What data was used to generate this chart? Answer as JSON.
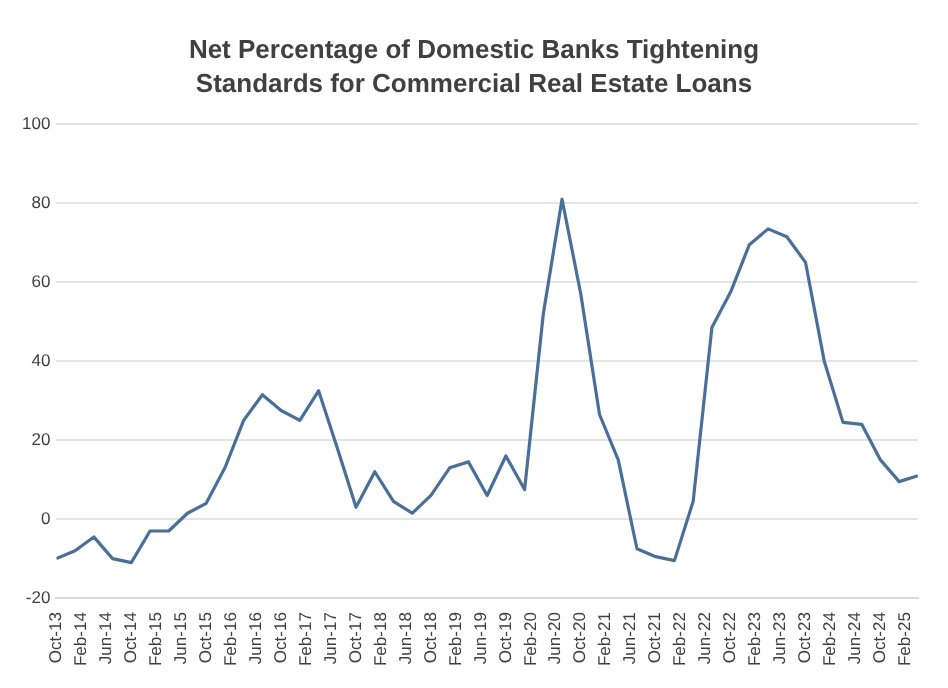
{
  "chart_data": {
    "type": "line",
    "title": "Net Percentage of Domestic Banks Tightening Standards for Commercial Real Estate Loans",
    "x": [
      "2013-10",
      "2014-01",
      "2014-04",
      "2014-07",
      "2014-10",
      "2015-01",
      "2015-04",
      "2015-07",
      "2015-10",
      "2016-01",
      "2016-04",
      "2016-07",
      "2016-10",
      "2017-01",
      "2017-04",
      "2017-07",
      "2017-10",
      "2018-01",
      "2018-04",
      "2018-07",
      "2018-10",
      "2019-01",
      "2019-04",
      "2019-07",
      "2019-10",
      "2020-01",
      "2020-04",
      "2020-07",
      "2020-10",
      "2021-01",
      "2021-04",
      "2021-07",
      "2021-10",
      "2022-01",
      "2022-04",
      "2022-07",
      "2022-10",
      "2023-01",
      "2023-04",
      "2023-07",
      "2023-10",
      "2024-01",
      "2024-04",
      "2024-07",
      "2024-10",
      "2025-01",
      "2025-04"
    ],
    "series": [
      {
        "color": "#4a6f98",
        "values": [
          -10,
          -8,
          -4.5,
          -10,
          -11,
          -3,
          -3,
          1.5,
          4,
          13,
          25,
          31.5,
          27.5,
          25,
          32.5,
          18,
          3,
          12,
          4.5,
          1.5,
          6,
          13,
          14.5,
          6,
          16,
          7.5,
          52,
          81,
          57,
          26.5,
          15,
          -7.5,
          -9.5,
          -10.5,
          4.5,
          48.5,
          57.5,
          69.5,
          73.5,
          71.5,
          65,
          40,
          24.5,
          24,
          15,
          9.5,
          11
        ]
      }
    ],
    "xlim": [
      "2013-10",
      "2025-04"
    ],
    "xticks": [
      {
        "value": "2013-10",
        "label": "Oct-13"
      },
      {
        "value": "2014-02",
        "label": "Feb-14"
      },
      {
        "value": "2014-06",
        "label": "Jun-14"
      },
      {
        "value": "2014-10",
        "label": "Oct-14"
      },
      {
        "value": "2015-02",
        "label": "Feb-15"
      },
      {
        "value": "2015-06",
        "label": "Jun-15"
      },
      {
        "value": "2015-10",
        "label": "Oct-15"
      },
      {
        "value": "2016-02",
        "label": "Feb-16"
      },
      {
        "value": "2016-06",
        "label": "Jun-16"
      },
      {
        "value": "2016-10",
        "label": "Oct-16"
      },
      {
        "value": "2017-02",
        "label": "Feb-17"
      },
      {
        "value": "2017-06",
        "label": "Jun-17"
      },
      {
        "value": "2017-10",
        "label": "Oct-17"
      },
      {
        "value": "2018-02",
        "label": "Feb-18"
      },
      {
        "value": "2018-06",
        "label": "Jun-18"
      },
      {
        "value": "2018-10",
        "label": "Oct-18"
      },
      {
        "value": "2019-02",
        "label": "Feb-19"
      },
      {
        "value": "2019-06",
        "label": "Jun-19"
      },
      {
        "value": "2019-10",
        "label": "Oct-19"
      },
      {
        "value": "2020-02",
        "label": "Feb-20"
      },
      {
        "value": "2020-06",
        "label": "Jun-20"
      },
      {
        "value": "2020-10",
        "label": "Oct-20"
      },
      {
        "value": "2021-02",
        "label": "Feb-21"
      },
      {
        "value": "2021-06",
        "label": "Jun-21"
      },
      {
        "value": "2021-10",
        "label": "Oct-21"
      },
      {
        "value": "2022-02",
        "label": "Feb-22"
      },
      {
        "value": "2022-06",
        "label": "Jun-22"
      },
      {
        "value": "2022-10",
        "label": "Oct-22"
      },
      {
        "value": "2023-02",
        "label": "Feb-23"
      },
      {
        "value": "2023-06",
        "label": "Jun-23"
      },
      {
        "value": "2023-10",
        "label": "Oct-23"
      },
      {
        "value": "2024-02",
        "label": "Feb-24"
      },
      {
        "value": "2024-06",
        "label": "Jun-24"
      },
      {
        "value": "2024-10",
        "label": "Oct-24"
      },
      {
        "value": "2025-02",
        "label": "Feb-25"
      }
    ],
    "ylim": [
      -20,
      100
    ],
    "yticks": [
      -20,
      0,
      20,
      40,
      60,
      80,
      100
    ],
    "grid": "y",
    "legend": false,
    "marker": "none",
    "line_style": "solid"
  }
}
